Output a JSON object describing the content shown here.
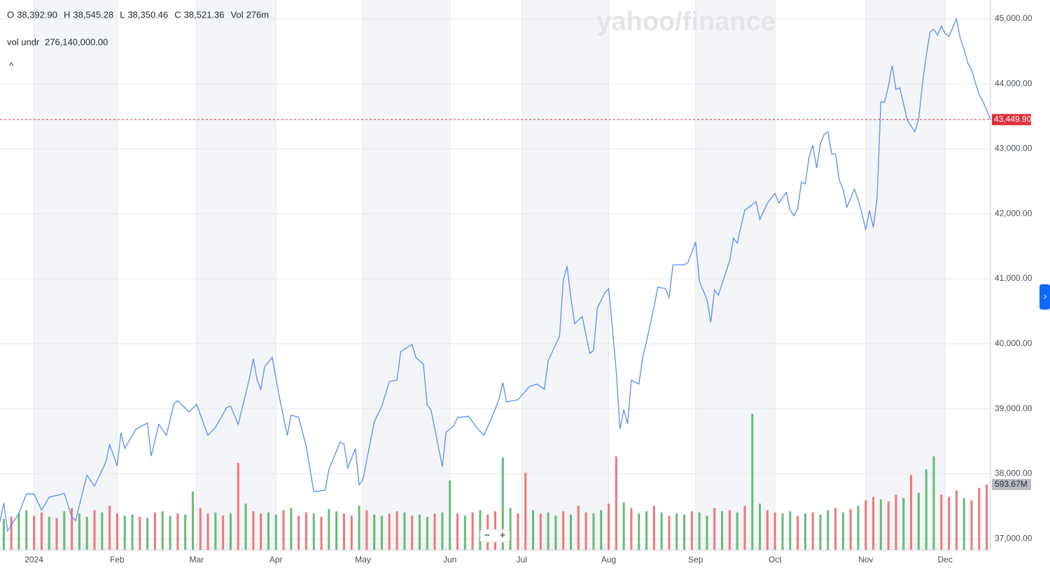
{
  "header": {
    "ohlc": [
      {
        "key": "O",
        "value": "38,392.90"
      },
      {
        "key": "H",
        "value": "38,545.28"
      },
      {
        "key": "L",
        "value": "38,350.46"
      },
      {
        "key": "C",
        "value": "38,521.36"
      },
      {
        "key": "Vol",
        "value": "276m"
      }
    ],
    "indicator": {
      "name": "vol undr",
      "value": "276,140,000.00"
    },
    "collapse": "^"
  },
  "controls": {
    "zoom_out": "−",
    "zoom_in": "+",
    "side_tab": "›"
  },
  "chart_data": {
    "type": "line",
    "watermark": "yahoo/finance",
    "x": [
      0,
      1,
      2,
      5,
      7,
      9,
      11,
      13,
      16,
      17,
      19,
      20,
      23,
      25,
      28,
      29,
      31,
      32,
      33,
      36,
      39,
      40,
      42,
      44,
      46,
      47,
      50,
      52,
      55,
      57,
      60,
      61,
      63,
      66,
      67,
      68,
      69,
      70,
      72,
      73,
      74,
      76,
      77,
      79,
      81,
      83,
      86,
      87,
      90,
      91,
      92,
      94,
      95,
      96,
      99,
      101,
      103,
      105,
      106,
      109,
      110,
      112,
      113,
      114,
      117,
      118,
      120,
      121,
      124,
      126,
      128,
      130,
      132,
      133,
      134,
      137,
      140,
      142,
      144,
      145,
      148,
      149,
      150,
      151,
      152,
      154,
      156,
      157,
      158,
      160,
      161,
      162,
      163,
      164,
      165,
      166,
      167,
      169,
      170,
      171,
      173,
      174,
      176,
      177,
      178,
      181,
      182,
      184,
      185,
      187,
      188,
      189,
      190,
      193,
      194,
      195,
      197,
      200,
      201,
      203,
      205,
      206,
      208,
      209,
      210,
      211,
      212,
      213,
      214,
      215,
      216,
      217,
      218,
      219,
      220,
      221,
      222,
      223,
      224,
      226,
      227,
      228,
      229,
      230,
      231,
      232,
      233,
      234,
      235,
      236,
      237,
      238,
      239,
      240,
      242,
      243,
      244,
      245,
      246,
      247,
      248,
      249,
      250,
      251,
      253,
      254,
      255,
      256,
      257,
      258,
      259,
      260,
      262
    ],
    "series": [
      {
        "color": "#5b8def",
        "values": [
          37260,
          37550,
          37120,
          37390,
          37690,
          37690,
          37440,
          37640,
          37680,
          37700,
          37335,
          37280,
          37980,
          37810,
          38180,
          38450,
          38120,
          38630,
          38390,
          38690,
          38780,
          38270,
          38760,
          38590,
          39080,
          39125,
          38950,
          39070,
          38590,
          38715,
          39020,
          39040,
          38760,
          39470,
          39770,
          39450,
          39300,
          39650,
          39790,
          39470,
          39150,
          38590,
          38900,
          38870,
          38420,
          37725,
          37745,
          38070,
          38490,
          38450,
          38090,
          38390,
          37830,
          37910,
          38800,
          39040,
          39420,
          39440,
          39880,
          39990,
          39790,
          39685,
          39060,
          38985,
          38110,
          38640,
          38735,
          38865,
          38885,
          38715,
          38590,
          38855,
          39145,
          39405,
          39105,
          39140,
          39340,
          39380,
          39300,
          39740,
          40115,
          40980,
          41195,
          40710,
          40310,
          40420,
          39850,
          39900,
          40550,
          40785,
          40850,
          40225,
          39580,
          38690,
          38985,
          38770,
          39440,
          39380,
          39790,
          40030,
          40570,
          40870,
          40850,
          40710,
          41215,
          41215,
          41250,
          41570,
          40960,
          40680,
          40330,
          40830,
          40745,
          41280,
          41625,
          41550,
          42055,
          42185,
          41915,
          42165,
          42315,
          42165,
          42330,
          42055,
          41970,
          42080,
          42490,
          42460,
          42865,
          43060,
          42705,
          43080,
          43220,
          43265,
          42920,
          42920,
          42520,
          42380,
          42100,
          42380,
          42220,
          42005,
          41755,
          42050,
          41790,
          42240,
          43720,
          43720,
          43965,
          44280,
          43910,
          43940,
          43695,
          43435,
          43265,
          43460,
          44000,
          44430,
          44795,
          44840,
          44750,
          44890,
          44775,
          44730,
          45000,
          44700,
          44535,
          44320,
          44215,
          44020,
          43835,
          43730,
          43449.9
        ]
      }
    ],
    "xlim": [
      0,
      262
    ],
    "xticks": [
      {
        "value": 9,
        "label": "2024"
      },
      {
        "value": 31,
        "label": "Feb"
      },
      {
        "value": 52,
        "label": "Mar"
      },
      {
        "value": 73,
        "label": "Apr"
      },
      {
        "value": 96,
        "label": "May"
      },
      {
        "value": 119,
        "label": "Jun"
      },
      {
        "value": 138,
        "label": "Jul"
      },
      {
        "value": 161,
        "label": "Aug"
      },
      {
        "value": 184,
        "label": "Sep"
      },
      {
        "value": 205,
        "label": "Oct"
      },
      {
        "value": 229,
        "label": "Nov"
      },
      {
        "value": 250,
        "label": "Dec"
      }
    ],
    "ylim": [
      36830,
      45290
    ],
    "yticks": [
      {
        "value": 37000,
        "label": "37,000.00"
      },
      {
        "value": 38000,
        "label": "38,000.00"
      },
      {
        "value": 39000,
        "label": "39,000.00"
      },
      {
        "value": 40000,
        "label": "40,000.00"
      },
      {
        "value": 41000,
        "label": "41,000.00"
      },
      {
        "value": 42000,
        "label": "42,000.00"
      },
      {
        "value": 43000,
        "label": "43,000.00"
      },
      {
        "value": 44000,
        "label": "44,000.00"
      },
      {
        "value": 45000,
        "label": "45,000.00"
      }
    ],
    "grid": true,
    "last_price": {
      "value": 43449.9,
      "label": "43,449.90",
      "color": "#e0303b"
    },
    "volume": {
      "y2lim": [
        0,
        5000
      ],
      "x": [
        1,
        3,
        5,
        7,
        9,
        11,
        13,
        15,
        17,
        19,
        21,
        23,
        25,
        27,
        29,
        31,
        33,
        35,
        37,
        39,
        41,
        43,
        45,
        47,
        49,
        51,
        53,
        55,
        57,
        59,
        61,
        63,
        65,
        67,
        69,
        71,
        73,
        75,
        77,
        79,
        81,
        83,
        85,
        87,
        89,
        91,
        93,
        95,
        97,
        99,
        101,
        103,
        105,
        107,
        109,
        111,
        113,
        115,
        117,
        119,
        121,
        123,
        125,
        127,
        129,
        131,
        133,
        135,
        137,
        139,
        141,
        143,
        145,
        147,
        149,
        151,
        153,
        155,
        157,
        159,
        161,
        163,
        165,
        167,
        169,
        171,
        173,
        175,
        177,
        179,
        181,
        183,
        185,
        187,
        189,
        191,
        193,
        195,
        197,
        199,
        201,
        203,
        205,
        207,
        209,
        211,
        213,
        215,
        217,
        219,
        221,
        223,
        225,
        227,
        229,
        231,
        233,
        235,
        237,
        239,
        241,
        243,
        245,
        247,
        249,
        251,
        253,
        255,
        257,
        259,
        261
      ],
      "values": [
        280,
        300,
        330,
        360,
        310,
        340,
        300,
        290,
        350,
        380,
        330,
        300,
        360,
        340,
        400,
        330,
        310,
        320,
        300,
        290,
        340,
        350,
        310,
        330,
        320,
        530,
        380,
        330,
        340,
        310,
        330,
        790,
        420,
        350,
        330,
        340,
        320,
        360,
        380,
        310,
        340,
        330,
        300,
        370,
        350,
        330,
        310,
        400,
        360,
        320,
        310,
        330,
        350,
        340,
        310,
        320,
        300,
        330,
        340,
        630,
        330,
        310,
        340,
        360,
        320,
        350,
        840,
        380,
        330,
        700,
        360,
        330,
        340,
        310,
        350,
        320,
        400,
        340,
        330,
        360,
        420,
        850,
        430,
        380,
        330,
        350,
        400,
        340,
        310,
        330,
        320,
        350,
        340,
        310,
        380,
        350,
        360,
        340,
        400,
        1235,
        420,
        360,
        340,
        330,
        350,
        310,
        330,
        340,
        320,
        360,
        380,
        340,
        370,
        400,
        450,
        480,
        460,
        440,
        500,
        470,
        680,
        520,
        730,
        850,
        500,
        480,
        540,
        470,
        450,
        560,
        593.67
      ],
      "value_labels": [
        null,
        null,
        null,
        null,
        null,
        null,
        null,
        null,
        null,
        null,
        null,
        null,
        null,
        null,
        null,
        null,
        null,
        null,
        null,
        null,
        null,
        null,
        null,
        null,
        null,
        null,
        null,
        null,
        null,
        null,
        null,
        null,
        null,
        null,
        null,
        null,
        null,
        null,
        null,
        null,
        null,
        null,
        null,
        null,
        null,
        null,
        null,
        null,
        null,
        null,
        null,
        null,
        null,
        null,
        null,
        null,
        null,
        null,
        null,
        null,
        null,
        null,
        null,
        null,
        null,
        null,
        null,
        null,
        null,
        null,
        null,
        null,
        null,
        null,
        null,
        null,
        null,
        null,
        null,
        null,
        null,
        null,
        null,
        null,
        null,
        null,
        null,
        null,
        null,
        null,
        null,
        null,
        null,
        null,
        null,
        null,
        null,
        null,
        null,
        null,
        null,
        null,
        null,
        null,
        null,
        null,
        null,
        null,
        null,
        null,
        null,
        null,
        null,
        null,
        null,
        null,
        null,
        null,
        null,
        null,
        null,
        null,
        null,
        null,
        null,
        null,
        null,
        null,
        null,
        null,
        "593.67M"
      ],
      "colors": [
        "#6b7",
        "#e77",
        "#6b7",
        "#6b7",
        "#e77",
        "#e77",
        "#6b7",
        "#e77",
        "#6b7",
        "#e77",
        "#6b7",
        "#6b7",
        "#e77",
        "#6b7",
        "#e77",
        "#e77",
        "#6b7",
        "#6b7",
        "#e77",
        "#6b7",
        "#e77",
        "#6b7",
        "#6b7",
        "#e77",
        "#6b7",
        "#6b7",
        "#e77",
        "#e77",
        "#6b7",
        "#e77",
        "#6b7",
        "#e77",
        "#6b7",
        "#e77",
        "#e77",
        "#6b7",
        "#6b7",
        "#e77",
        "#6b7",
        "#e77",
        "#e77",
        "#6b7",
        "#e77",
        "#6b7",
        "#6b7",
        "#e77",
        "#e77",
        "#6b7",
        "#e77",
        "#6b7",
        "#6b7",
        "#e77",
        "#e77",
        "#6b7",
        "#e77",
        "#6b7",
        "#6b7",
        "#e77",
        "#6b7",
        "#6b7",
        "#e77",
        "#6b7",
        "#e77",
        "#6b7",
        "#e77",
        "#e77",
        "#6b7",
        "#6b7",
        "#e77",
        "#e77",
        "#6b7",
        "#e77",
        "#6b7",
        "#6b7",
        "#e77",
        "#6b7",
        "#e77",
        "#e77",
        "#6b7",
        "#6b7",
        "#e77",
        "#e77",
        "#6b7",
        "#e77",
        "#6b7",
        "#6b7",
        "#e77",
        "#6b7",
        "#e77",
        "#6b7",
        "#6b7",
        "#e77",
        "#6b7",
        "#6b7",
        "#e77",
        "#6b7",
        "#e77",
        "#6b7",
        "#e77",
        "#6b7",
        "#6b7",
        "#e77",
        "#e77",
        "#6b7",
        "#6b7",
        "#e77",
        "#6b7",
        "#e77",
        "#6b7",
        "#6b7",
        "#e77",
        "#6b7",
        "#e77",
        "#6b7",
        "#e77",
        "#e77",
        "#6b7",
        "#e77",
        "#e77",
        "#6b7",
        "#e77",
        "#6b7",
        "#6b7",
        "#6b7",
        "#e77",
        "#e77",
        "#e77",
        "#6b7",
        "#e77",
        "#e77",
        "#e77"
      ]
    }
  }
}
